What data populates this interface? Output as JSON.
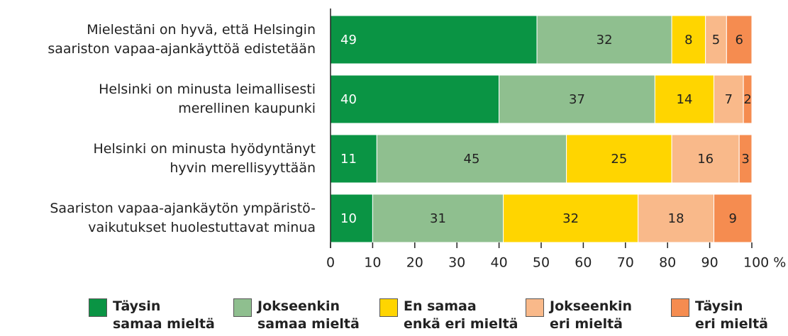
{
  "chart_data": {
    "type": "stacked_barh",
    "categories": [
      "Mielestäni on hyvä, että Helsingin\nsaariston vapaa-ajankäyttöä edistetään",
      "Helsinki on minusta leimallisesti\nmerellinen kaupunki",
      "Helsinki on minusta hyödyntänyt\nhyvin merellisyyttään",
      "Saariston vapaa-ajankäytön ympäristö-\nvaikutukset huolestuttavat minua"
    ],
    "series": [
      {
        "name": "Täysin\nsamaa mieltä",
        "color": "#0a9444",
        "values": [
          49,
          40,
          11,
          10
        ]
      },
      {
        "name": "Jokseenkin\nsamaa mieltä",
        "color": "#8fbf8f",
        "values": [
          32,
          37,
          45,
          31
        ]
      },
      {
        "name": "En samaa\nenkä eri mieltä",
        "color": "#ffd500",
        "values": [
          8,
          14,
          25,
          32
        ]
      },
      {
        "name": "Jokseenkin\neri mieltä",
        "color": "#f9b98a",
        "values": [
          5,
          7,
          16,
          18
        ]
      },
      {
        "name": "Täysin\neri mieltä",
        "color": "#f58c50",
        "values": [
          6,
          2,
          3,
          9
        ]
      }
    ],
    "xlim": [
      0,
      100
    ],
    "xticks": [
      0,
      10,
      20,
      30,
      40,
      50,
      60,
      70,
      80,
      90,
      {
        "value": 100,
        "label": "100 %"
      }
    ]
  }
}
